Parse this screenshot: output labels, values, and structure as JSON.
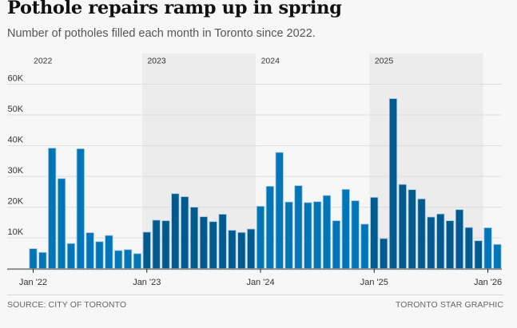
{
  "header": {
    "title": "Pothole repairs ramp up in spring",
    "subtitle": "Number of potholes filled each month in Toronto since 2022."
  },
  "footer": {
    "source": "SOURCE: CITY OF TORONTO",
    "credit": "TORONTO STAR GRAPHIC"
  },
  "colors": {
    "background": "#f7f7f7",
    "band": "#ececec",
    "bar_light": "#0075b8",
    "bar_dark": "#005a8e",
    "bar_outline": "#9cc6e4",
    "gridline": "#dcdcdc",
    "axis": "#888888"
  },
  "chart_data": {
    "type": "bar",
    "title": "Pothole repairs ramp up in spring",
    "subtitle": "Number of potholes filled each month in Toronto since 2022.",
    "xlabel": "",
    "ylabel": "",
    "ylim": [
      0,
      60000
    ],
    "grid": true,
    "yticks": [
      {
        "value": 10000,
        "label": "10K"
      },
      {
        "value": 20000,
        "label": "20K"
      },
      {
        "value": 30000,
        "label": "30K"
      },
      {
        "value": 40000,
        "label": "40K"
      },
      {
        "value": 50000,
        "label": "50K"
      },
      {
        "value": 60000,
        "label": "60K"
      }
    ],
    "xticks": [
      {
        "index": 0,
        "label": "Jan '22"
      },
      {
        "index": 12,
        "label": "Jan '23"
      },
      {
        "index": 24,
        "label": "Jan '24"
      },
      {
        "index": 36,
        "label": "Jan '25"
      },
      {
        "index": 48,
        "label": "Jan '26"
      }
    ],
    "year_bands": [
      {
        "label": "2022",
        "start": 0,
        "end": 12,
        "shaded": false
      },
      {
        "label": "2023",
        "start": 12,
        "end": 24,
        "shaded": true
      },
      {
        "label": "2024",
        "start": 24,
        "end": 36,
        "shaded": false
      },
      {
        "label": "2025",
        "start": 36,
        "end": 48,
        "shaded": true
      }
    ],
    "categories": [
      "2022-01",
      "2022-02",
      "2022-03",
      "2022-04",
      "2022-05",
      "2022-06",
      "2022-07",
      "2022-08",
      "2022-09",
      "2022-10",
      "2022-11",
      "2022-12",
      "2023-01",
      "2023-02",
      "2023-03",
      "2023-04",
      "2023-05",
      "2023-06",
      "2023-07",
      "2023-08",
      "2023-09",
      "2023-10",
      "2023-11",
      "2023-12",
      "2024-01",
      "2024-02",
      "2024-03",
      "2024-04",
      "2024-05",
      "2024-06",
      "2024-07",
      "2024-08",
      "2024-09",
      "2024-10",
      "2024-11",
      "2024-12",
      "2025-01",
      "2025-02",
      "2025-03",
      "2025-04",
      "2025-05",
      "2025-06",
      "2025-07",
      "2025-08",
      "2025-09",
      "2025-10",
      "2025-11",
      "2025-12",
      "2026-01",
      "2026-02"
    ],
    "values": [
      6500,
      5300,
      39200,
      29300,
      8200,
      39000,
      11700,
      8800,
      10800,
      5900,
      6200,
      4900,
      11900,
      15800,
      15600,
      24400,
      23400,
      20000,
      16900,
      15300,
      17700,
      12500,
      11800,
      12900,
      20300,
      26800,
      37800,
      21700,
      27000,
      21500,
      21800,
      23800,
      15600,
      25800,
      22100,
      14500,
      23200,
      9800,
      55300,
      27400,
      25700,
      22700,
      16800,
      17800,
      15600,
      19200,
      13400,
      9100,
      13300,
      7900
    ]
  }
}
